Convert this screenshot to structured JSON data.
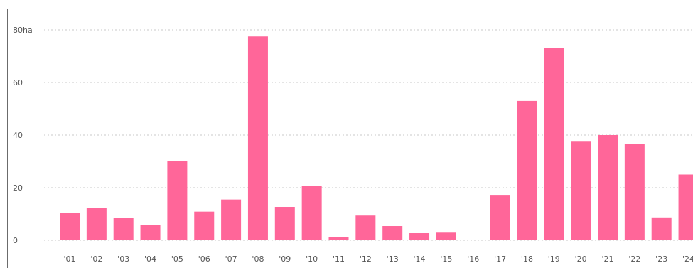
{
  "chart_data": {
    "type": "bar",
    "title": "",
    "xlabel": "",
    "ylabel": "",
    "y_unit_label": "80ha",
    "ylim": [
      0,
      80
    ],
    "yticks": [
      0,
      20,
      40,
      60,
      80
    ],
    "ytick_labels": [
      "0",
      "20",
      "40",
      "60",
      "80ha"
    ],
    "categories": [
      "'01",
      "'02",
      "'03",
      "'04",
      "'05",
      "'06",
      "'07",
      "'08",
      "'09",
      "'10",
      "'11",
      "'12",
      "'13",
      "'14",
      "'15",
      "'16",
      "'17",
      "'18",
      "'19",
      "'20",
      "'21",
      "'22",
      "'23",
      "'24"
    ],
    "values": [
      10.5,
      12.3,
      8.4,
      5.8,
      30.0,
      10.9,
      15.5,
      77.5,
      12.7,
      20.7,
      1.2,
      9.4,
      5.4,
      2.7,
      2.9,
      0,
      17.0,
      53.0,
      73.0,
      37.5,
      40.0,
      36.5,
      8.7,
      25.0
    ],
    "grid": true,
    "legend": "none",
    "colors": {
      "bar": "#ff6699",
      "grid": "#c9c9c9",
      "tick_text": "#555555",
      "frame": "#6b6b6b"
    }
  }
}
